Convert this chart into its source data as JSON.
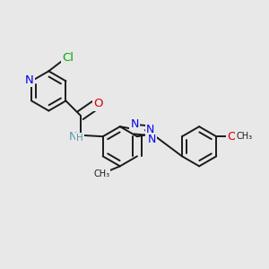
{
  "background_color": "#e8e8e8",
  "bond_color": "#1a1a1a",
  "atom_colors": {
    "N": "#0000ee",
    "O": "#dd0000",
    "Cl": "#00aa00",
    "C": "#1a1a1a",
    "H": "#5599aa"
  },
  "font_size": 8.5,
  "line_width": 1.4,
  "double_sep": 0.018
}
